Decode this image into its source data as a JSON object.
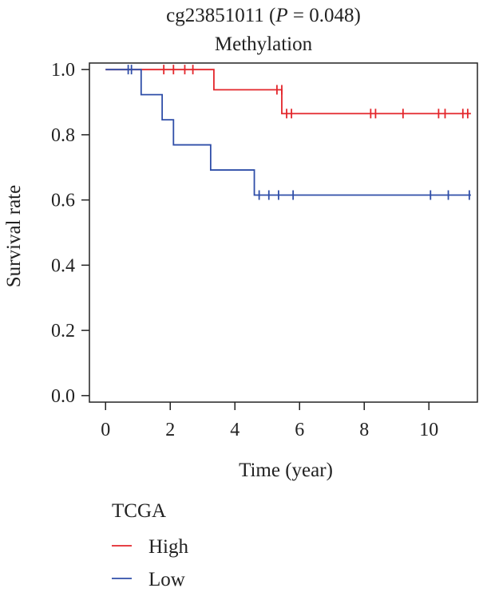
{
  "chart_data": {
    "type": "line",
    "step": true,
    "title_prefix": "cg23851011 (",
    "title_p": "P",
    "title_suffix": " = 0.048)",
    "subtitle": "Methylation",
    "xlabel": "Time (year)",
    "ylabel": "Survival rate",
    "xlim": [
      -0.5,
      11.5
    ],
    "ylim": [
      -0.02,
      1.02
    ],
    "xticks": [
      0,
      2,
      4,
      6,
      8,
      10
    ],
    "yticks": [
      0.0,
      0.2,
      0.4,
      0.6,
      0.8,
      1.0
    ],
    "ytick_labels": [
      "0.0",
      "0.2",
      "0.4",
      "0.6",
      "0.8",
      "1.0"
    ],
    "grid": false,
    "legend_title": "TCGA",
    "legend_position": "bottom-left",
    "series": [
      {
        "name": "High",
        "color": "#e3262b",
        "steps": [
          [
            0,
            1.0
          ],
          [
            3.35,
            0.938
          ],
          [
            5.45,
            0.865
          ],
          [
            11.3,
            0.865
          ]
        ],
        "censors": [
          [
            1.8,
            1.0
          ],
          [
            2.1,
            1.0
          ],
          [
            2.45,
            1.0
          ],
          [
            2.7,
            1.0
          ],
          [
            5.3,
            0.938
          ],
          [
            5.45,
            0.938
          ],
          [
            5.6,
            0.865
          ],
          [
            5.75,
            0.865
          ],
          [
            8.2,
            0.865
          ],
          [
            8.35,
            0.865
          ],
          [
            9.2,
            0.865
          ],
          [
            10.3,
            0.865
          ],
          [
            10.5,
            0.865
          ],
          [
            11.05,
            0.865
          ],
          [
            11.2,
            0.865
          ]
        ]
      },
      {
        "name": "Low",
        "color": "#2f4ea8",
        "steps": [
          [
            0,
            1.0
          ],
          [
            1.1,
            0.923
          ],
          [
            1.75,
            0.846
          ],
          [
            2.1,
            0.769
          ],
          [
            3.25,
            0.692
          ],
          [
            4.6,
            0.615
          ],
          [
            11.3,
            0.615
          ]
        ],
        "censors": [
          [
            0.7,
            1.0
          ],
          [
            0.8,
            1.0
          ],
          [
            4.75,
            0.615
          ],
          [
            5.05,
            0.615
          ],
          [
            5.35,
            0.615
          ],
          [
            5.8,
            0.615
          ],
          [
            10.05,
            0.615
          ],
          [
            10.6,
            0.615
          ],
          [
            11.25,
            0.615
          ]
        ]
      }
    ]
  }
}
